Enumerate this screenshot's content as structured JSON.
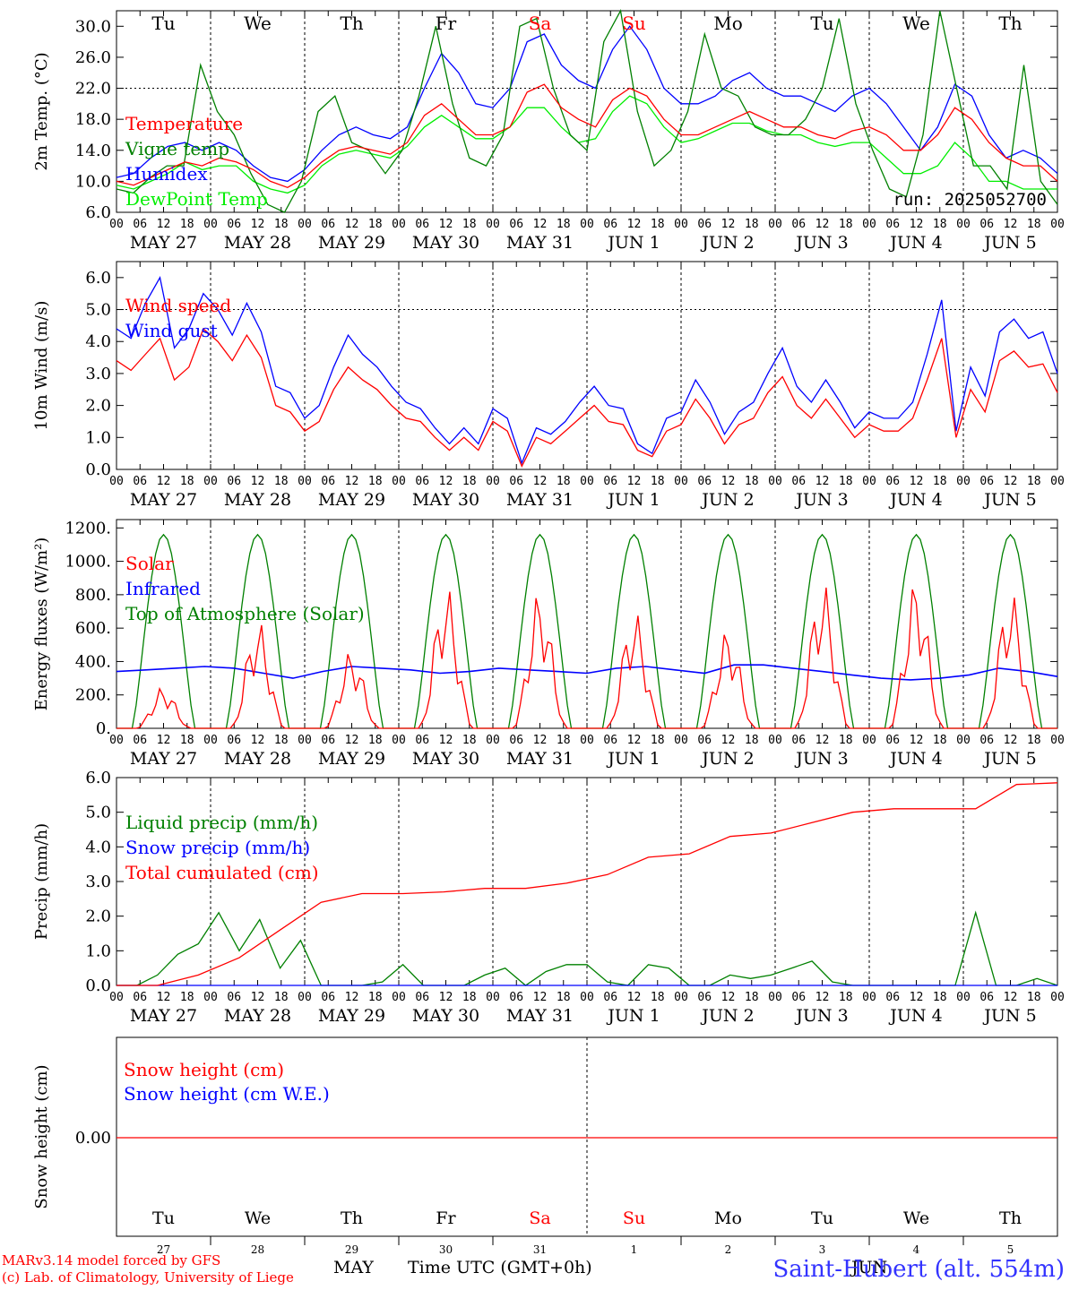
{
  "chart_data": [
    {
      "type": "line",
      "ylabel": "2m Temp. (°C)",
      "ylim": [
        6.0,
        32.0
      ],
      "yticks": [
        "6.0",
        "10.0",
        "14.0",
        "18.0",
        "22.0",
        "26.0",
        "30.0"
      ],
      "day_labels": [
        "Tu",
        "We",
        "Th",
        "Fr",
        "Sa",
        "Su",
        "Mo",
        "Tu",
        "We",
        "Th"
      ],
      "date_labels": [
        "MAY 27",
        "MAY 28",
        "MAY 29",
        "MAY 30",
        "MAY 31",
        "JUN  1",
        "JUN  2",
        "JUN  3",
        "JUN  4",
        "JUN  5"
      ],
      "annotation": "run: 2025052700",
      "series": [
        {
          "name": "Temperature",
          "color": "#ff0000",
          "values": [
            10,
            9.5,
            10.5,
            11.5,
            12.5,
            12,
            13,
            12.5,
            11.5,
            10,
            9.2,
            10.5,
            12.5,
            14,
            14.5,
            14,
            13.5,
            15,
            18.5,
            20,
            18,
            16,
            16,
            17,
            21.5,
            22.5,
            19.5,
            18,
            17,
            20.5,
            22,
            21,
            18,
            16,
            16,
            17,
            18,
            19,
            18,
            17,
            17,
            16,
            15.5,
            16.5,
            17,
            16,
            14,
            14,
            16,
            19.5,
            18,
            15,
            13,
            12,
            12,
            10
          ]
        },
        {
          "name": "Vigne temp",
          "color": "#008000",
          "values": [
            9,
            8.5,
            10.5,
            12,
            12,
            25,
            19,
            16,
            11,
            7,
            6,
            10,
            19,
            21,
            15,
            14,
            11,
            14,
            21,
            30,
            20,
            13,
            12,
            16,
            30,
            31,
            22,
            16,
            14,
            28,
            32,
            19,
            12,
            14,
            19,
            29,
            22,
            21,
            17,
            16,
            16,
            18,
            22,
            31,
            20,
            14,
            9,
            8,
            16,
            32,
            22,
            12,
            12,
            9,
            25,
            10,
            7
          ]
        },
        {
          "name": "Humidex",
          "color": "#0000ff",
          "values": [
            10.5,
            11,
            13,
            14.5,
            15,
            14,
            15,
            14,
            12,
            10.5,
            10,
            11.5,
            14,
            16,
            17,
            16,
            15.5,
            17,
            22,
            26.5,
            24,
            20,
            19.5,
            22,
            28,
            29,
            25,
            23,
            22,
            27,
            30,
            27,
            22,
            20,
            20,
            21,
            23,
            24,
            22,
            21,
            21,
            20,
            19,
            21,
            22,
            20,
            17,
            14,
            17,
            22.5,
            21,
            16,
            13,
            14,
            13,
            11
          ]
        },
        {
          "name": "DewPoint Temp",
          "color": "#00ee00",
          "values": [
            9.5,
            9,
            10,
            11,
            12.5,
            11.5,
            12,
            12,
            10,
            9,
            8.5,
            9.5,
            12,
            13.5,
            14,
            13.5,
            13,
            14.5,
            17,
            18.5,
            17,
            15.5,
            15.5,
            17,
            19.5,
            19.5,
            17,
            15,
            15.5,
            19,
            21,
            20,
            17,
            15,
            15.5,
            16.5,
            17.5,
            17.5,
            16.5,
            16,
            16,
            15,
            14.5,
            15,
            15,
            13,
            11,
            11,
            12,
            15,
            13,
            10,
            10,
            9,
            9,
            9
          ]
        }
      ]
    },
    {
      "type": "line",
      "ylabel": "10m Wind (m/s)",
      "ylim": [
        0.0,
        6.5
      ],
      "yticks": [
        "0.0",
        "1.0",
        "2.0",
        "3.0",
        "4.0",
        "5.0",
        "6.0"
      ],
      "date_labels": [
        "MAY 27",
        "MAY 28",
        "MAY 29",
        "MAY 30",
        "MAY 31",
        "JUN  1",
        "JUN  2",
        "JUN  3",
        "JUN  4",
        "JUN  5"
      ],
      "series": [
        {
          "name": "Wind speed",
          "color": "#ff0000",
          "values": [
            3.4,
            3.1,
            3.6,
            4.1,
            2.8,
            3.2,
            4.4,
            4.0,
            3.4,
            4.2,
            3.5,
            2.0,
            1.8,
            1.2,
            1.5,
            2.5,
            3.2,
            2.8,
            2.5,
            2.0,
            1.6,
            1.5,
            1.0,
            0.6,
            1.0,
            0.6,
            1.5,
            1.2,
            0.1,
            1.0,
            0.8,
            1.2,
            1.6,
            2.0,
            1.5,
            1.4,
            0.6,
            0.4,
            1.2,
            1.4,
            2.2,
            1.6,
            0.8,
            1.4,
            1.6,
            2.4,
            2.9,
            2.0,
            1.6,
            2.2,
            1.6,
            1.0,
            1.4,
            1.2,
            1.2,
            1.6,
            2.8,
            4.1,
            1.0,
            2.5,
            1.8,
            3.4,
            3.7,
            3.2,
            3.3,
            2.4
          ]
        },
        {
          "name": "Wind gust",
          "color": "#0000ff",
          "values": [
            4.4,
            4.1,
            5.2,
            6.0,
            3.8,
            4.4,
            5.5,
            5.0,
            4.2,
            5.2,
            4.3,
            2.6,
            2.4,
            1.6,
            2.0,
            3.2,
            4.2,
            3.6,
            3.2,
            2.6,
            2.1,
            1.9,
            1.3,
            0.8,
            1.3,
            0.8,
            1.9,
            1.6,
            0.2,
            1.3,
            1.1,
            1.5,
            2.1,
            2.6,
            2.0,
            1.9,
            0.8,
            0.5,
            1.6,
            1.8,
            2.8,
            2.1,
            1.1,
            1.8,
            2.1,
            3.0,
            3.8,
            2.6,
            2.1,
            2.8,
            2.1,
            1.3,
            1.8,
            1.6,
            1.6,
            2.1,
            3.6,
            5.3,
            1.2,
            3.2,
            2.3,
            4.3,
            4.7,
            4.1,
            4.3,
            3.0
          ]
        }
      ]
    },
    {
      "type": "line",
      "ylabel": "Energy fluxes (W/m²)",
      "ylim": [
        0,
        1250
      ],
      "yticks": [
        "0.",
        "200.",
        "400.",
        "600.",
        "800.",
        "1000.",
        "1200."
      ],
      "date_labels": [
        "MAY 27",
        "MAY 28",
        "MAY 29",
        "MAY 30",
        "MAY 31",
        "JUN  1",
        "JUN  2",
        "JUN  3",
        "JUN  4",
        "JUN  5"
      ],
      "series": [
        {
          "name": "Solar",
          "color": "#ff0000",
          "daily_peaks": [
            250,
            650,
            470,
            860,
            830,
            710,
            600,
            890,
            900,
            830
          ]
        },
        {
          "name": "Infrared",
          "color": "#0000ff",
          "values": [
            340,
            350,
            360,
            370,
            360,
            330,
            300,
            340,
            370,
            360,
            350,
            330,
            340,
            360,
            350,
            340,
            330,
            360,
            370,
            350,
            330,
            380,
            380,
            360,
            340,
            320,
            300,
            290,
            300,
            320,
            360,
            340,
            310
          ]
        },
        {
          "name": "Top of Atmosphere (Solar)",
          "color": "#008000",
          "daily_peak": 1160
        }
      ]
    },
    {
      "type": "line",
      "ylabel": "Precip (mm/h)",
      "ylim": [
        0.0,
        6.0
      ],
      "yticks": [
        "0.0",
        "1.0",
        "2.0",
        "3.0",
        "4.0",
        "5.0",
        "6.0"
      ],
      "date_labels": [
        "MAY 27",
        "MAY 28",
        "MAY 29",
        "MAY 30",
        "MAY 31",
        "JUN  1",
        "JUN  2",
        "JUN  3",
        "JUN  4",
        "JUN  5"
      ],
      "series": [
        {
          "name": "Liquid precip (mm/h)",
          "color": "#008000",
          "values": [
            0,
            0,
            0.3,
            0.9,
            1.2,
            2.1,
            1.0,
            1.9,
            0.5,
            1.3,
            0,
            0,
            0,
            0.1,
            0.6,
            0,
            0,
            0,
            0.3,
            0.5,
            0,
            0.4,
            0.6,
            0.6,
            0.1,
            0,
            0.6,
            0.5,
            0,
            0,
            0.3,
            0.2,
            0.3,
            0.5,
            0.7,
            0.1,
            0,
            0,
            0,
            0,
            0,
            0,
            2.1,
            0,
            0,
            0.2,
            0
          ]
        },
        {
          "name": "Snow precip (mm/h)",
          "color": "#0000ff",
          "values": [
            0,
            0
          ]
        },
        {
          "name": "Total cumulated (cm)",
          "color": "#ff0000",
          "values": [
            0,
            0,
            0.3,
            0.8,
            1.6,
            2.4,
            2.65,
            2.65,
            2.7,
            2.8,
            2.8,
            2.95,
            3.2,
            3.7,
            3.8,
            4.3,
            4.4,
            4.7,
            5.0,
            5.1,
            5.1,
            5.1,
            5.8,
            5.85
          ]
        }
      ]
    },
    {
      "type": "line",
      "ylabel": "Snow height (cm)",
      "yticks": [
        "0.00"
      ],
      "day_labels": [
        "Tu",
        "We",
        "Th",
        "Fr",
        "Sa",
        "Su",
        "Mo",
        "Tu",
        "We",
        "Th"
      ],
      "day_numbers": [
        "27",
        "28",
        "29",
        "30",
        "31",
        "1",
        "2",
        "3",
        "4",
        "5"
      ],
      "series": [
        {
          "name": "Snow height (cm)",
          "color": "#ff0000",
          "values": [
            0,
            0
          ]
        },
        {
          "name": "Snow height (cm W.E.)",
          "color": "#0000ff",
          "values": [
            0,
            0
          ]
        }
      ]
    }
  ],
  "hour_ticks": [
    "00",
    "06",
    "12",
    "18"
  ],
  "footer": {
    "model_line": "MARv3.14 model forced by GFS",
    "copyright_line": "(c) Lab. of Climatology, University of Liege",
    "month_label": "MAY",
    "month_label_2": "JUN",
    "axis_title": "Time UTC (GMT+0h)",
    "station": "Saint-Hubert (alt. 554m)"
  },
  "colors": {
    "weekend": "#ff0000",
    "axis": "#000000"
  }
}
